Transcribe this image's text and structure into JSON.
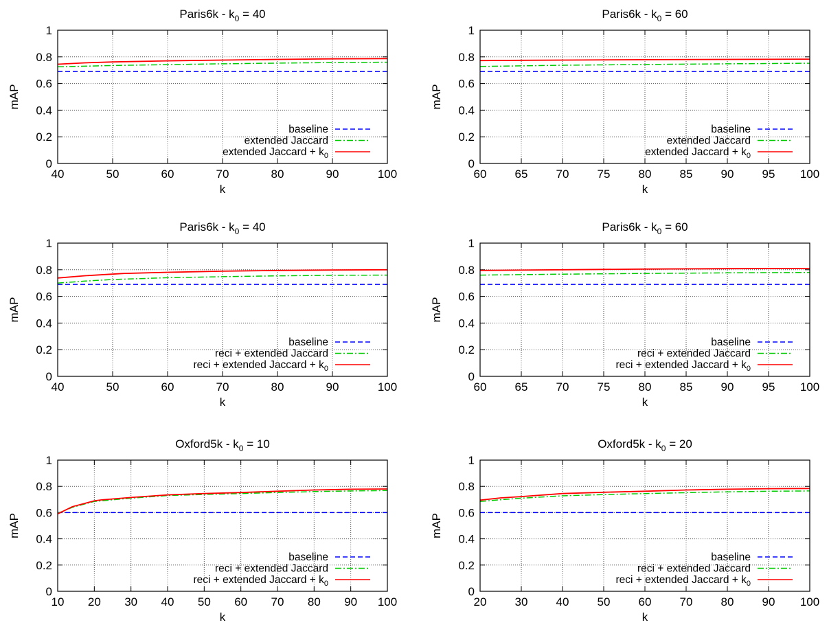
{
  "chart_data": [
    {
      "type": "line",
      "title_prefix": "Paris6k - k",
      "title_sub": "0",
      "title_suffix": " = 40",
      "xlabel": "k",
      "ylabel": "mAP",
      "xlim": [
        40,
        100
      ],
      "ylim": [
        0,
        1
      ],
      "xticks": [
        40,
        50,
        60,
        70,
        80,
        90,
        100
      ],
      "yticks": [
        0,
        0.2,
        0.4,
        0.6,
        0.8,
        1
      ],
      "grid": true,
      "legend_position": "bottom-right",
      "series": [
        {
          "name": "baseline",
          "color": "#0000ff",
          "dash": "dashed",
          "x": [
            40,
            100
          ],
          "y": [
            0.69,
            0.69
          ]
        },
        {
          "name": "extended Jaccard",
          "color": "#00cc00",
          "dash": "dashdot",
          "x": [
            40,
            50,
            60,
            70,
            80,
            90,
            100
          ],
          "y": [
            0.725,
            0.735,
            0.742,
            0.748,
            0.753,
            0.757,
            0.76
          ]
        },
        {
          "name": "extended Jaccard + k",
          "name_sub": "0",
          "color": "#ff0000",
          "dash": "solid",
          "x": [
            40,
            45,
            50,
            60,
            70,
            80,
            90,
            100
          ],
          "y": [
            0.745,
            0.755,
            0.762,
            0.77,
            0.776,
            0.781,
            0.785,
            0.787
          ]
        }
      ]
    },
    {
      "type": "line",
      "title_prefix": "Paris6k - k",
      "title_sub": "0",
      "title_suffix": " = 60",
      "xlabel": "k",
      "ylabel": "mAP",
      "xlim": [
        60,
        100
      ],
      "ylim": [
        0,
        1
      ],
      "xticks": [
        60,
        65,
        70,
        75,
        80,
        85,
        90,
        95,
        100
      ],
      "yticks": [
        0,
        0.2,
        0.4,
        0.6,
        0.8,
        1
      ],
      "grid": true,
      "legend_position": "bottom-right",
      "series": [
        {
          "name": "baseline",
          "color": "#0000ff",
          "dash": "dashed",
          "x": [
            60,
            100
          ],
          "y": [
            0.69,
            0.69
          ]
        },
        {
          "name": "extended Jaccard",
          "color": "#00cc00",
          "dash": "dashdot",
          "x": [
            60,
            70,
            80,
            90,
            100
          ],
          "y": [
            0.728,
            0.737,
            0.743,
            0.748,
            0.752
          ]
        },
        {
          "name": "extended Jaccard + k",
          "name_sub": "0",
          "color": "#ff0000",
          "dash": "solid",
          "x": [
            60,
            70,
            80,
            90,
            100
          ],
          "y": [
            0.772,
            0.776,
            0.779,
            0.781,
            0.783
          ]
        }
      ]
    },
    {
      "type": "line",
      "title_prefix": "Paris6k - k",
      "title_sub": "0",
      "title_suffix": " = 40",
      "xlabel": "k",
      "ylabel": "mAP",
      "xlim": [
        40,
        100
      ],
      "ylim": [
        0,
        1
      ],
      "xticks": [
        40,
        50,
        60,
        70,
        80,
        90,
        100
      ],
      "yticks": [
        0,
        0.2,
        0.4,
        0.6,
        0.8,
        1
      ],
      "grid": true,
      "legend_position": "bottom-right",
      "series": [
        {
          "name": "baseline",
          "color": "#0000ff",
          "dash": "dashed",
          "x": [
            40,
            100
          ],
          "y": [
            0.69,
            0.69
          ]
        },
        {
          "name": "reci + extended Jaccard",
          "color": "#00cc00",
          "dash": "dashdot",
          "x": [
            40,
            45,
            50,
            60,
            70,
            80,
            90,
            100
          ],
          "y": [
            0.7,
            0.715,
            0.727,
            0.74,
            0.748,
            0.754,
            0.758,
            0.76
          ]
        },
        {
          "name": "reci + extended Jaccard + k",
          "name_sub": "0",
          "color": "#ff0000",
          "dash": "solid",
          "x": [
            40,
            45,
            52,
            60,
            70,
            80,
            90,
            100
          ],
          "y": [
            0.738,
            0.755,
            0.772,
            0.781,
            0.789,
            0.795,
            0.798,
            0.8
          ]
        }
      ]
    },
    {
      "type": "line",
      "title_prefix": "Paris6k - k",
      "title_sub": "0",
      "title_suffix": " = 60",
      "xlabel": "k",
      "ylabel": "mAP",
      "xlim": [
        60,
        100
      ],
      "ylim": [
        0,
        1
      ],
      "xticks": [
        60,
        65,
        70,
        75,
        80,
        85,
        90,
        95,
        100
      ],
      "yticks": [
        0,
        0.2,
        0.4,
        0.6,
        0.8,
        1
      ],
      "grid": true,
      "legend_position": "bottom-right",
      "series": [
        {
          "name": "baseline",
          "color": "#0000ff",
          "dash": "dashed",
          "x": [
            60,
            100
          ],
          "y": [
            0.69,
            0.69
          ]
        },
        {
          "name": "reci + extended Jaccard",
          "color": "#00cc00",
          "dash": "dashdot",
          "x": [
            60,
            70,
            80,
            90,
            100
          ],
          "y": [
            0.76,
            0.767,
            0.772,
            0.777,
            0.78
          ]
        },
        {
          "name": "reci + extended Jaccard + k",
          "name_sub": "0",
          "color": "#ff0000",
          "dash": "solid",
          "x": [
            60,
            70,
            80,
            90,
            100
          ],
          "y": [
            0.795,
            0.8,
            0.805,
            0.808,
            0.81
          ]
        }
      ]
    },
    {
      "type": "line",
      "title_prefix": "Oxford5k - k",
      "title_sub": "0",
      "title_suffix": " = 10",
      "xlabel": "k",
      "ylabel": "mAP",
      "xlim": [
        10,
        100
      ],
      "ylim": [
        0,
        1
      ],
      "xticks": [
        10,
        20,
        30,
        40,
        50,
        60,
        70,
        80,
        90,
        100
      ],
      "yticks": [
        0,
        0.2,
        0.4,
        0.6,
        0.8,
        1
      ],
      "grid": true,
      "legend_position": "bottom-right",
      "series": [
        {
          "name": "baseline",
          "color": "#0000ff",
          "dash": "dashed",
          "x": [
            10,
            100
          ],
          "y": [
            0.6,
            0.6
          ]
        },
        {
          "name": "reci + extended Jaccard",
          "color": "#00cc00",
          "dash": "dashdot",
          "x": [
            10,
            14,
            18,
            20,
            30,
            40,
            50,
            60,
            70,
            80,
            90,
            100
          ],
          "y": [
            0.595,
            0.64,
            0.67,
            0.685,
            0.71,
            0.73,
            0.738,
            0.745,
            0.753,
            0.76,
            0.765,
            0.768
          ]
        },
        {
          "name": "reci + extended Jaccard + k",
          "name_sub": "0",
          "color": "#ff0000",
          "dash": "solid",
          "x": [
            10,
            14,
            18,
            20,
            22,
            30,
            40,
            50,
            60,
            70,
            80,
            90,
            100
          ],
          "y": [
            0.59,
            0.645,
            0.675,
            0.69,
            0.697,
            0.715,
            0.735,
            0.745,
            0.753,
            0.763,
            0.772,
            0.778,
            0.78
          ]
        }
      ]
    },
    {
      "type": "line",
      "title_prefix": "Oxford5k - k",
      "title_sub": "0",
      "title_suffix": " = 20",
      "xlabel": "k",
      "ylabel": "mAP",
      "xlim": [
        20,
        100
      ],
      "ylim": [
        0,
        1
      ],
      "xticks": [
        20,
        30,
        40,
        50,
        60,
        70,
        80,
        90,
        100
      ],
      "yticks": [
        0,
        0.2,
        0.4,
        0.6,
        0.8,
        1
      ],
      "grid": true,
      "legend_position": "bottom-right",
      "series": [
        {
          "name": "baseline",
          "color": "#0000ff",
          "dash": "dashed",
          "x": [
            20,
            100
          ],
          "y": [
            0.6,
            0.6
          ]
        },
        {
          "name": "reci + extended Jaccard",
          "color": "#00cc00",
          "dash": "dashdot",
          "x": [
            20,
            25,
            30,
            40,
            50,
            60,
            70,
            80,
            90,
            100
          ],
          "y": [
            0.685,
            0.698,
            0.71,
            0.728,
            0.737,
            0.745,
            0.752,
            0.758,
            0.763,
            0.765
          ]
        },
        {
          "name": "reci + extended Jaccard + k",
          "name_sub": "0",
          "color": "#ff0000",
          "dash": "solid",
          "x": [
            20,
            25,
            30,
            40,
            50,
            60,
            70,
            80,
            90,
            100
          ],
          "y": [
            0.695,
            0.712,
            0.722,
            0.745,
            0.755,
            0.763,
            0.772,
            0.778,
            0.782,
            0.784
          ]
        }
      ]
    }
  ]
}
